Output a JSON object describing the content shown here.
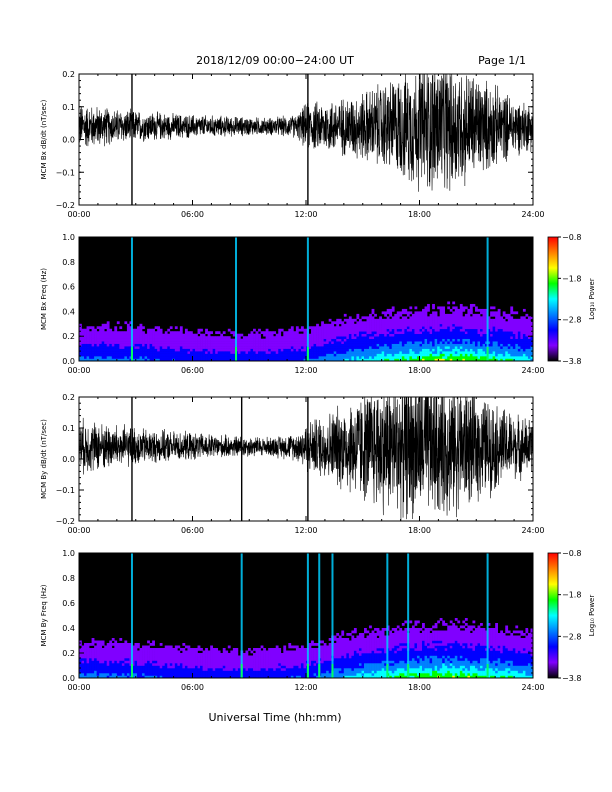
{
  "header": {
    "title": "2018/12/09   00:00−24:00 UT",
    "page": "Page 1/1"
  },
  "footer": {
    "xlabel": "Universal Time (hh:mm)"
  },
  "chart_data": [
    {
      "type": "line",
      "ylabel": "MCM Bx dB/dt (nT/sec)",
      "xlim": [
        0,
        24
      ],
      "ylim": [
        -0.2,
        0.2
      ],
      "x_ticks": [
        "00:00",
        "06:00",
        "12:00",
        "18:00",
        "24:00"
      ],
      "y_ticks": [
        "0.2",
        "0.1",
        "0.0",
        "−0.1",
        "−0.2"
      ],
      "baseline": 0.04,
      "envelope": {
        "hours": [
          0,
          2,
          4,
          6,
          8,
          10,
          11.5,
          12,
          14,
          15,
          16,
          17,
          18,
          19,
          20,
          21,
          22,
          23,
          24
        ],
        "half_range": [
          0.08,
          0.06,
          0.05,
          0.04,
          0.035,
          0.03,
          0.04,
          0.08,
          0.1,
          0.12,
          0.15,
          0.18,
          0.22,
          0.24,
          0.22,
          0.18,
          0.14,
          0.1,
          0.08
        ]
      },
      "spikes_hours": [
        2.8,
        12.1
      ],
      "series_color": "#000000"
    },
    {
      "type": "heatmap",
      "ylabel": "MCM Bx Freq (Hz)",
      "xlim": [
        0,
        24
      ],
      "ylim": [
        0,
        1.0
      ],
      "x_ticks": [
        "00:00",
        "06:00",
        "12:00",
        "18:00",
        "24:00"
      ],
      "y_ticks": [
        "1.0",
        "0.8",
        "0.6",
        "0.4",
        "0.2",
        "0.0"
      ],
      "colorbar": {
        "label": "Log₁₀ Power",
        "range": [
          -3.8,
          -0.8
        ],
        "ticks": [
          "−0.8",
          "−1.8",
          "−2.8",
          "−3.8"
        ],
        "colors": [
          "#ff0000",
          "#ff8000",
          "#ffff00",
          "#00ff00",
          "#00ffff",
          "#0080ff",
          "#0000ff",
          "#8000ff",
          "#000000"
        ]
      },
      "bright_lines_hours": [
        2.8,
        8.3,
        12.1,
        21.6
      ]
    },
    {
      "type": "line",
      "ylabel": "MCM By dB/dt (nT/sec)",
      "xlim": [
        0,
        24
      ],
      "ylim": [
        -0.2,
        0.2
      ],
      "x_ticks": [
        "00:00",
        "06:00",
        "12:00",
        "18:00",
        "24:00"
      ],
      "y_ticks": [
        "0.2",
        "0.1",
        "0.0",
        "−0.1",
        "−0.2"
      ],
      "baseline": 0.04,
      "envelope": {
        "hours": [
          0,
          2,
          4,
          6,
          8,
          10,
          11.5,
          12,
          13,
          14,
          15,
          16,
          17,
          18,
          19,
          20,
          21,
          22,
          23,
          24
        ],
        "half_range": [
          0.1,
          0.08,
          0.06,
          0.05,
          0.04,
          0.035,
          0.05,
          0.09,
          0.12,
          0.16,
          0.2,
          0.24,
          0.26,
          0.26,
          0.26,
          0.24,
          0.2,
          0.16,
          0.12,
          0.1
        ]
      },
      "spikes_hours": [
        2.8,
        8.6,
        12.1
      ],
      "series_color": "#000000"
    },
    {
      "type": "heatmap",
      "ylabel": "MCM By Freq (Hz)",
      "xlim": [
        0,
        24
      ],
      "ylim": [
        0,
        1.0
      ],
      "x_ticks": [
        "00:00",
        "06:00",
        "12:00",
        "18:00",
        "24:00"
      ],
      "y_ticks": [
        "1.0",
        "0.8",
        "0.6",
        "0.4",
        "0.2",
        "0.0"
      ],
      "colorbar": {
        "label": "Log₁₀ Power",
        "range": [
          -3.8,
          -0.8
        ],
        "ticks": [
          "−0.8",
          "−1.8",
          "−2.8",
          "−3.8"
        ],
        "colors": [
          "#ff0000",
          "#ff8000",
          "#ffff00",
          "#00ff00",
          "#00ffff",
          "#0080ff",
          "#0000ff",
          "#8000ff",
          "#000000"
        ]
      },
      "bright_lines_hours": [
        2.8,
        8.6,
        12.1,
        12.7,
        13.4,
        16.3,
        17.4,
        21.6
      ]
    }
  ]
}
